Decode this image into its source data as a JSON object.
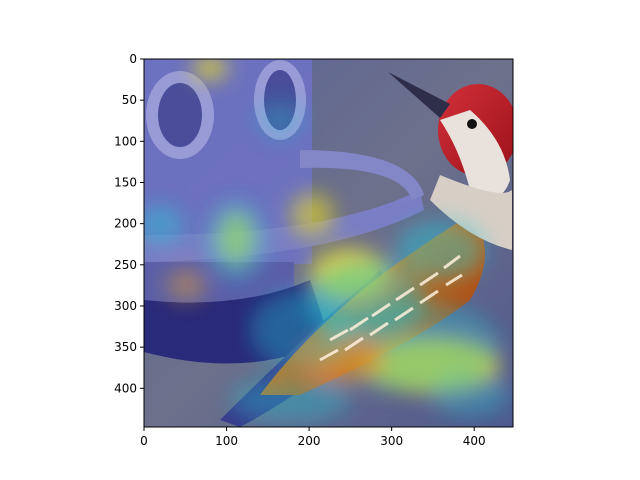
{
  "figure": {
    "description_free": true,
    "image_extent": {
      "x_range": [
        0,
        447
      ],
      "y_range": [
        447,
        0
      ]
    },
    "x_ticks": [
      "0",
      "100",
      "200",
      "300",
      "400"
    ],
    "y_ticks": [
      "0",
      "50",
      "100",
      "150",
      "200",
      "250",
      "300",
      "350",
      "400"
    ],
    "colors": {
      "background": "#ffffff",
      "axis": "#000000",
      "heat_low": "#2a2aa8",
      "heat_mid": "#22c8d8",
      "heat_high": "#f2e21a",
      "heat_peak": "#d23a1a",
      "bird_head": "#c01a22",
      "bird_face": "#e9e2dc",
      "feeder": "#7b7fb8"
    }
  }
}
